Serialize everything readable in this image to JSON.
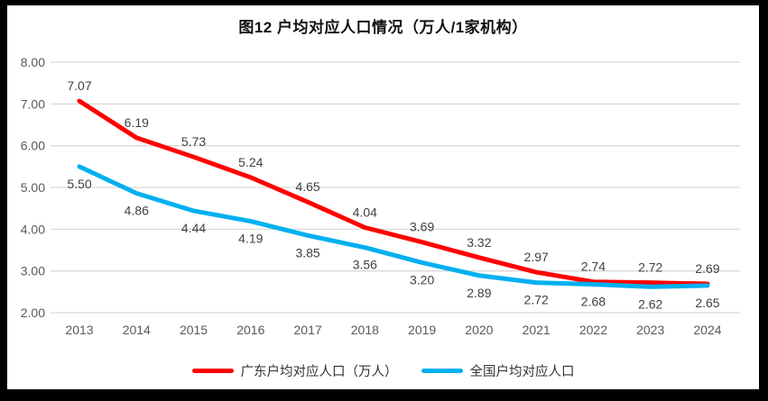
{
  "frame": {
    "border_color": "#000000",
    "canvas_background": "#ffffff"
  },
  "chart_data": {
    "type": "line",
    "title": "图12 户均对应人口情况（万人/1家机构）",
    "categories": [
      "2013",
      "2014",
      "2015",
      "2016",
      "2017",
      "2018",
      "2019",
      "2020",
      "2021",
      "2022",
      "2023",
      "2024"
    ],
    "series": [
      {
        "name": "广东户均对应人口（万人）",
        "color": "#ff0000",
        "label_position": "above",
        "values": [
          7.07,
          6.19,
          5.73,
          5.24,
          4.65,
          4.04,
          3.69,
          3.32,
          2.97,
          2.74,
          2.72,
          2.69
        ]
      },
      {
        "name": "全国户均对应人口",
        "color": "#00b0f0",
        "label_position": "below",
        "values": [
          5.5,
          4.86,
          4.44,
          4.19,
          3.85,
          3.56,
          3.2,
          2.89,
          2.72,
          2.68,
          2.62,
          2.65
        ]
      }
    ],
    "ylim": [
      2,
      8
    ],
    "y_ticks": [
      "8.00",
      "7.00",
      "6.00",
      "5.00",
      "4.00",
      "3.00",
      "2.00"
    ],
    "grid": true,
    "legend_position": "bottom",
    "gridline_color": "#d9d9d9",
    "axis_label_color": "#595959",
    "data_label_color": "#404040"
  }
}
